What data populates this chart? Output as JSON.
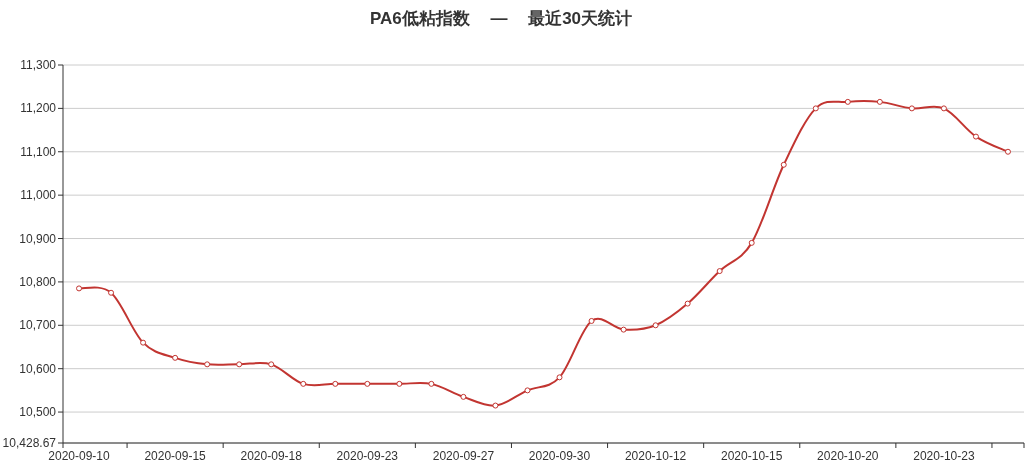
{
  "chart_data": {
    "type": "line",
    "title": "PA6低粘指数 — 最近30天统计",
    "categories": [
      "2020-09-10",
      null,
      null,
      "2020-09-15",
      null,
      null,
      "2020-09-18",
      null,
      null,
      "2020-09-23",
      null,
      null,
      "2020-09-27",
      null,
      null,
      "2020-09-30",
      null,
      null,
      "2020-10-12",
      null,
      null,
      "2020-10-15",
      null,
      null,
      "2020-10-20",
      null,
      null,
      "2020-10-23",
      null,
      null
    ],
    "series": [
      {
        "color": "#c23531",
        "values": [
          10785,
          10775,
          10660,
          10625,
          10610,
          10610,
          10610,
          10565,
          10565,
          10565,
          10565,
          10565,
          10535,
          10515,
          10550,
          10580,
          10710,
          10690,
          10700,
          10750,
          10825,
          10890,
          11070,
          11200,
          11215,
          11215,
          11200,
          11200,
          11135,
          11100
        ]
      }
    ],
    "ylim": [
      10428.67,
      11300
    ],
    "yticks": [
      {
        "value": 10428.67,
        "label": "10,428.67"
      },
      {
        "value": 10500,
        "label": "10,500"
      },
      {
        "value": 10600,
        "label": "10,600"
      },
      {
        "value": 10700,
        "label": "10,700"
      },
      {
        "value": 10800,
        "label": "10,800"
      },
      {
        "value": 10900,
        "label": "10,900"
      },
      {
        "value": 11000,
        "label": "11,000"
      },
      {
        "value": 11100,
        "label": "11,100"
      },
      {
        "value": 11200,
        "label": "11,200"
      },
      {
        "value": 11300,
        "label": "11,300"
      }
    ],
    "grid": "y",
    "marker": "circle",
    "line_style": "solid"
  }
}
